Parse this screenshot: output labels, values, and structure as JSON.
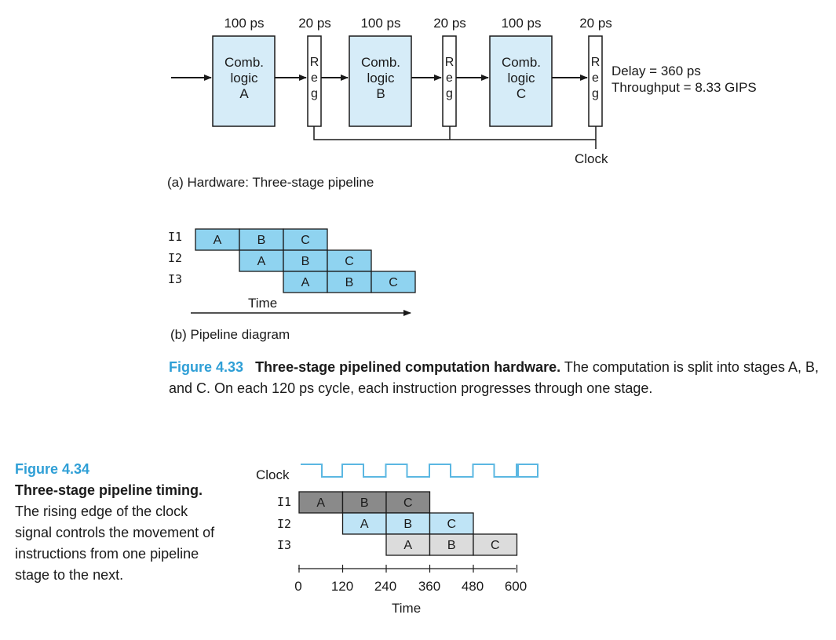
{
  "hardware": {
    "delays": [
      "100 ps",
      "20 ps",
      "100 ps",
      "20 ps",
      "100 ps",
      "20 ps"
    ],
    "comb_blocks": [
      "Comb.\nlogic\nA",
      "Comb.\nlogic\nB",
      "Comb.\nlogic\nC"
    ],
    "reg_label": "R\ne\ng",
    "delay_text": "Delay = 360 ps",
    "throughput_text": "Throughput = 8.33 GIPS",
    "clock_label": "Clock",
    "subcaption": "(a) Hardware: Three-stage pipeline"
  },
  "pipeline_diagram": {
    "rows": [
      {
        "label": "I1",
        "stages": [
          "A",
          "B",
          "C"
        ]
      },
      {
        "label": "I2",
        "stages": [
          "A",
          "B",
          "C"
        ]
      },
      {
        "label": "I3",
        "stages": [
          "A",
          "B",
          "C"
        ]
      }
    ],
    "time_label": "Time",
    "subcaption": "(b) Pipeline diagram"
  },
  "figure_433": {
    "label": "Figure 4.33",
    "title": "Three-stage pipelined computation hardware.",
    "body": "The computation is split into stages A, B, and C. On each 120 ps cycle, each instruction progresses through one stage."
  },
  "figure_434": {
    "label": "Figure 4.34",
    "title": "Three-stage pipeline timing.",
    "body": "The rising edge of the clock signal controls the movement of instructions from one pipeline stage to the next."
  },
  "timing": {
    "clock_label": "Clock",
    "rows": [
      {
        "label": "I1",
        "stages": [
          "A",
          "B",
          "C"
        ]
      },
      {
        "label": "I2",
        "stages": [
          "A",
          "B",
          "C"
        ]
      },
      {
        "label": "I3",
        "stages": [
          "A",
          "B",
          "C"
        ]
      }
    ],
    "ticks": [
      "0",
      "120",
      "240",
      "360",
      "480",
      "600"
    ],
    "time_label": "Time"
  },
  "colors": {
    "block_fill": "#d6ecf8",
    "stage_fill": "#8fd3f0",
    "timing_i1": "#8a8a8a",
    "timing_i2": "#bfe4f6",
    "timing_i3": "#dcdcdc",
    "clock_wave": "#5bb7e2",
    "figure_label": "#2f9fd6"
  }
}
